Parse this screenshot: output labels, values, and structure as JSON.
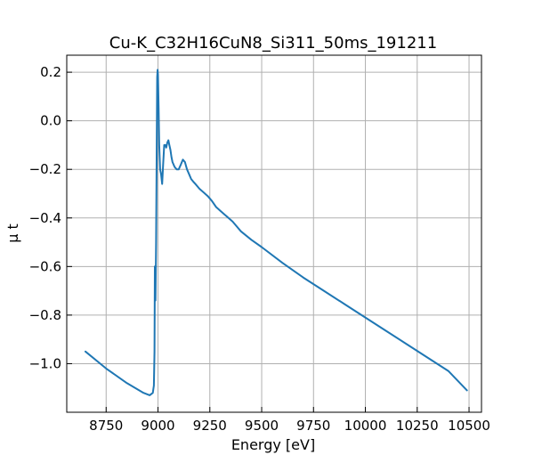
{
  "chart_data": {
    "type": "line",
    "title": "Cu-K_C32H16CuN8_Si311_50ms_191211",
    "xlabel": "Energy [eV]",
    "ylabel": "μ t",
    "xlim": [
      8560,
      10560
    ],
    "ylim": [
      -1.2,
      0.27
    ],
    "xticks": [
      8750,
      9000,
      9250,
      9500,
      9750,
      10000,
      10250,
      10500
    ],
    "yticks": [
      -1.0,
      -0.8,
      -0.6,
      -0.4,
      -0.2,
      0.0,
      0.2
    ],
    "xtick_labels": [
      "8750",
      "9000",
      "9250",
      "9500",
      "9750",
      "10000",
      "10250",
      "10500"
    ],
    "ytick_labels": [
      "−1.0",
      "−0.8",
      "−0.6",
      "−0.4",
      "−0.2",
      "0.0",
      "0.2"
    ],
    "grid": true,
    "series": [
      {
        "color": "#1f77b4",
        "x": [
          8650,
          8750,
          8850,
          8930,
          8960,
          8975,
          8980,
          8983,
          8985,
          8988,
          8991,
          8994,
          8996,
          8998,
          9000,
          9003,
          9006,
          9010,
          9015,
          9020,
          9025,
          9030,
          9035,
          9040,
          9045,
          9050,
          9055,
          9060,
          9065,
          9070,
          9080,
          9090,
          9100,
          9110,
          9120,
          9130,
          9140,
          9150,
          9160,
          9170,
          9180,
          9200,
          9220,
          9240,
          9260,
          9280,
          9300,
          9320,
          9340,
          9360,
          9400,
          9450,
          9500,
          9600,
          9700,
          9800,
          9900,
          10000,
          10100,
          10200,
          10300,
          10400,
          10490
        ],
        "y": [
          -0.95,
          -1.02,
          -1.08,
          -1.12,
          -1.13,
          -1.12,
          -1.09,
          -0.95,
          -0.6,
          -0.74,
          -0.5,
          -0.1,
          0.18,
          0.21,
          0.19,
          0.06,
          -0.1,
          -0.2,
          -0.22,
          -0.26,
          -0.18,
          -0.1,
          -0.1,
          -0.11,
          -0.09,
          -0.08,
          -0.1,
          -0.12,
          -0.15,
          -0.17,
          -0.19,
          -0.2,
          -0.2,
          -0.18,
          -0.16,
          -0.17,
          -0.2,
          -0.22,
          -0.24,
          -0.25,
          -0.26,
          -0.28,
          -0.295,
          -0.31,
          -0.33,
          -0.355,
          -0.37,
          -0.385,
          -0.4,
          -0.415,
          -0.455,
          -0.49,
          -0.52,
          -0.585,
          -0.645,
          -0.7,
          -0.755,
          -0.81,
          -0.865,
          -0.92,
          -0.975,
          -1.03,
          -1.11
        ]
      }
    ]
  }
}
